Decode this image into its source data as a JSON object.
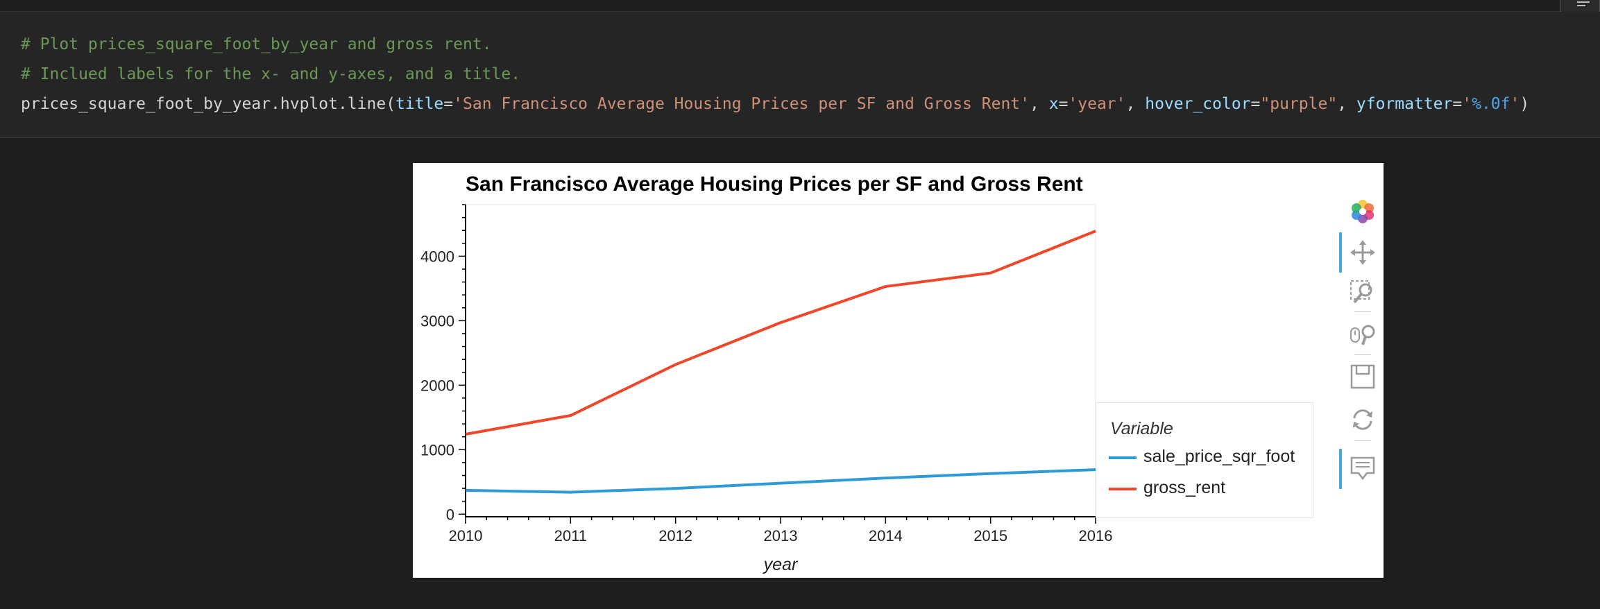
{
  "code_cell": {
    "line1": "# Plot prices_square_foot_by_year and gross rent.",
    "line2": "# Inclued labels for the x- and y-axes, and a title.",
    "line3": {
      "prefix": "prices_square_foot_by_year.hvplot.line(",
      "p_title": "title",
      "eq": "=",
      "v_title": "'San Francisco Average Housing Prices per SF and Gross Rent'",
      "sep": ", ",
      "p_x": "x",
      "v_x": "'year'",
      "p_hover": "hover_color",
      "v_hover": "\"purple\"",
      "p_yfmt": "yformatter",
      "q_open": "'",
      "v_yfmt": "%.0f",
      "q_close": "'",
      "suffix": ")"
    }
  },
  "output": {
    "toolbar": {
      "tools": [
        "bokeh-logo-icon",
        "pan-icon",
        "box-zoom-icon",
        "wheel-zoom-icon",
        "save-icon",
        "reset-icon",
        "hover-icon"
      ]
    },
    "colors": {
      "sale_price_sqr_foot": "#2e9bd6",
      "gross_rent": "#f0462a"
    }
  },
  "chart_data": {
    "type": "line",
    "title": "San Francisco Average Housing Prices per SF and Gross Rent",
    "xlabel": "year",
    "ylabel": "",
    "x": [
      2010,
      2011,
      2012,
      2013,
      2014,
      2015,
      2016
    ],
    "xlim": [
      2010,
      2016
    ],
    "ylim": [
      -40,
      4800
    ],
    "x_ticks": [
      "2010",
      "2011",
      "2012",
      "2013",
      "2014",
      "2015",
      "2016"
    ],
    "y_ticks": [
      "0",
      "1000",
      "2000",
      "3000",
      "4000"
    ],
    "legend_title": "Variable",
    "legend_position": "right",
    "grid": false,
    "series": [
      {
        "name": "sale_price_sqr_foot",
        "values": [
          370,
          340,
          400,
          480,
          560,
          630,
          690
        ]
      },
      {
        "name": "gross_rent",
        "values": [
          1240,
          1530,
          2320,
          2970,
          3530,
          3740,
          4390
        ]
      }
    ]
  }
}
